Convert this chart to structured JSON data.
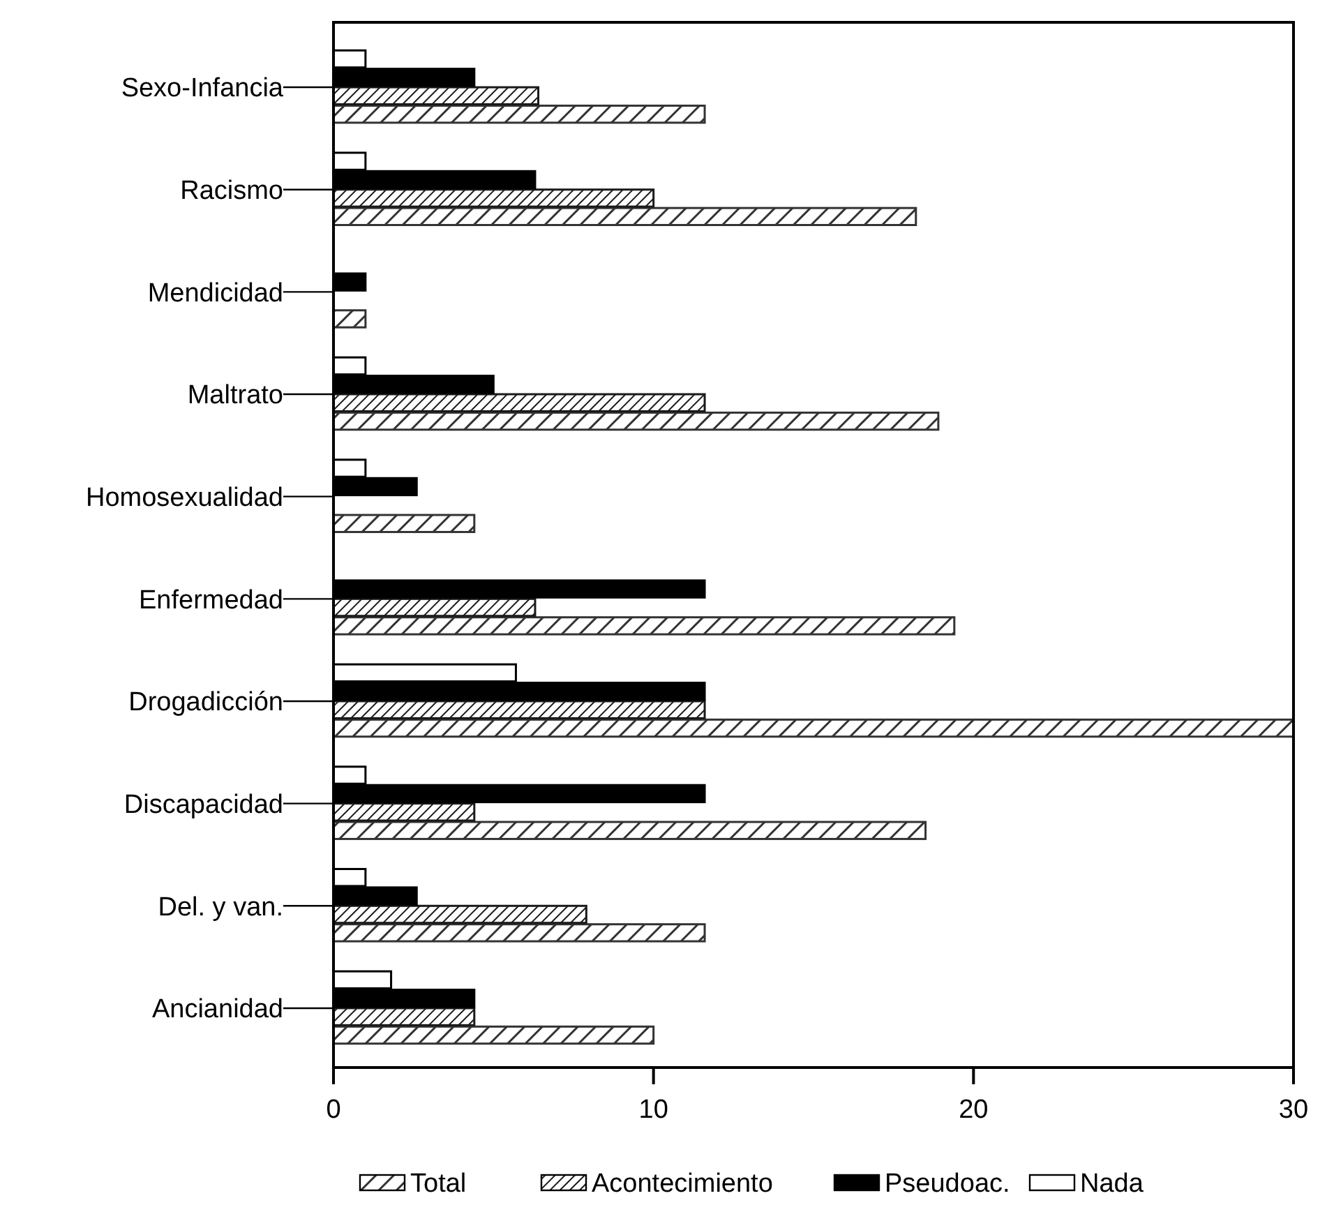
{
  "chart_data": {
    "type": "bar",
    "orientation": "horizontal",
    "categories": [
      "Sexo-Infancia",
      "Racismo",
      "Mendicidad",
      "Maltrato",
      "Homosexualidad",
      "Enfermedad",
      "Drogadicción",
      "Discapacidad",
      "Del. y van.",
      "Ancianidad"
    ],
    "series": [
      {
        "name": "Total",
        "color": "#333333",
        "values": [
          11.6,
          18.2,
          1.0,
          18.9,
          4.4,
          19.4,
          30,
          18.5,
          11.6,
          10.0
        ]
      },
      {
        "name": "Acontecimiento",
        "color": "#1a1a1a",
        "values": [
          6.4,
          10.0,
          null,
          11.6,
          null,
          6.3,
          11.6,
          4.4,
          7.9,
          4.4
        ]
      },
      {
        "name": "Pseudoac.",
        "color": "#000000",
        "values": [
          4.4,
          6.3,
          1.0,
          5.0,
          2.6,
          11.6,
          11.6,
          11.6,
          2.6,
          4.4
        ]
      },
      {
        "name": "Nada",
        "color": "#ffffff",
        "values": [
          1.0,
          1.0,
          null,
          1.0,
          1.0,
          null,
          5.7,
          1.0,
          1.0,
          1.8
        ]
      }
    ],
    "xlim": [
      0,
      30
    ],
    "xticks": [
      0,
      10,
      20,
      30
    ],
    "grid": false,
    "legend": "bottom"
  }
}
